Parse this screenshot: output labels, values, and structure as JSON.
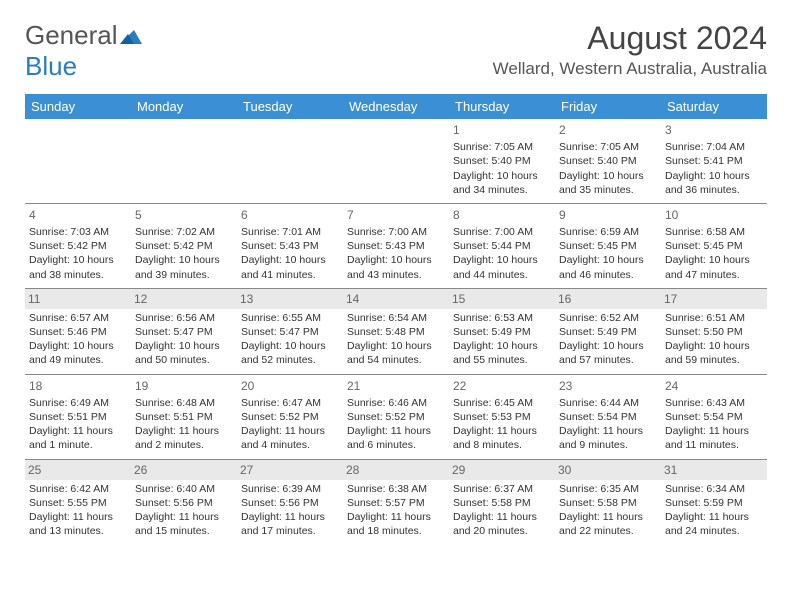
{
  "logo": {
    "text1": "General",
    "text2": "Blue"
  },
  "title": "August 2024",
  "location": "Wellard, Western Australia, Australia",
  "colors": {
    "header_bg": "#3b8fd4",
    "header_text": "#ffffff",
    "logo_blue": "#2a7dc0",
    "shade_bg": "#e9e9e9",
    "border": "#888888"
  },
  "dayHeaders": [
    "Sunday",
    "Monday",
    "Tuesday",
    "Wednesday",
    "Thursday",
    "Friday",
    "Saturday"
  ],
  "weeks": [
    [
      {
        "day": "",
        "sunrise": "",
        "sunset": "",
        "daylight": ""
      },
      {
        "day": "",
        "sunrise": "",
        "sunset": "",
        "daylight": ""
      },
      {
        "day": "",
        "sunrise": "",
        "sunset": "",
        "daylight": ""
      },
      {
        "day": "",
        "sunrise": "",
        "sunset": "",
        "daylight": ""
      },
      {
        "day": "1",
        "sunrise": "Sunrise: 7:05 AM",
        "sunset": "Sunset: 5:40 PM",
        "daylight": "Daylight: 10 hours and 34 minutes."
      },
      {
        "day": "2",
        "sunrise": "Sunrise: 7:05 AM",
        "sunset": "Sunset: 5:40 PM",
        "daylight": "Daylight: 10 hours and 35 minutes."
      },
      {
        "day": "3",
        "sunrise": "Sunrise: 7:04 AM",
        "sunset": "Sunset: 5:41 PM",
        "daylight": "Daylight: 10 hours and 36 minutes."
      }
    ],
    [
      {
        "day": "4",
        "sunrise": "Sunrise: 7:03 AM",
        "sunset": "Sunset: 5:42 PM",
        "daylight": "Daylight: 10 hours and 38 minutes."
      },
      {
        "day": "5",
        "sunrise": "Sunrise: 7:02 AM",
        "sunset": "Sunset: 5:42 PM",
        "daylight": "Daylight: 10 hours and 39 minutes."
      },
      {
        "day": "6",
        "sunrise": "Sunrise: 7:01 AM",
        "sunset": "Sunset: 5:43 PM",
        "daylight": "Daylight: 10 hours and 41 minutes."
      },
      {
        "day": "7",
        "sunrise": "Sunrise: 7:00 AM",
        "sunset": "Sunset: 5:43 PM",
        "daylight": "Daylight: 10 hours and 43 minutes."
      },
      {
        "day": "8",
        "sunrise": "Sunrise: 7:00 AM",
        "sunset": "Sunset: 5:44 PM",
        "daylight": "Daylight: 10 hours and 44 minutes."
      },
      {
        "day": "9",
        "sunrise": "Sunrise: 6:59 AM",
        "sunset": "Sunset: 5:45 PM",
        "daylight": "Daylight: 10 hours and 46 minutes."
      },
      {
        "day": "10",
        "sunrise": "Sunrise: 6:58 AM",
        "sunset": "Sunset: 5:45 PM",
        "daylight": "Daylight: 10 hours and 47 minutes."
      }
    ],
    [
      {
        "day": "11",
        "sunrise": "Sunrise: 6:57 AM",
        "sunset": "Sunset: 5:46 PM",
        "daylight": "Daylight: 10 hours and 49 minutes."
      },
      {
        "day": "12",
        "sunrise": "Sunrise: 6:56 AM",
        "sunset": "Sunset: 5:47 PM",
        "daylight": "Daylight: 10 hours and 50 minutes."
      },
      {
        "day": "13",
        "sunrise": "Sunrise: 6:55 AM",
        "sunset": "Sunset: 5:47 PM",
        "daylight": "Daylight: 10 hours and 52 minutes."
      },
      {
        "day": "14",
        "sunrise": "Sunrise: 6:54 AM",
        "sunset": "Sunset: 5:48 PM",
        "daylight": "Daylight: 10 hours and 54 minutes."
      },
      {
        "day": "15",
        "sunrise": "Sunrise: 6:53 AM",
        "sunset": "Sunset: 5:49 PM",
        "daylight": "Daylight: 10 hours and 55 minutes."
      },
      {
        "day": "16",
        "sunrise": "Sunrise: 6:52 AM",
        "sunset": "Sunset: 5:49 PM",
        "daylight": "Daylight: 10 hours and 57 minutes."
      },
      {
        "day": "17",
        "sunrise": "Sunrise: 6:51 AM",
        "sunset": "Sunset: 5:50 PM",
        "daylight": "Daylight: 10 hours and 59 minutes."
      }
    ],
    [
      {
        "day": "18",
        "sunrise": "Sunrise: 6:49 AM",
        "sunset": "Sunset: 5:51 PM",
        "daylight": "Daylight: 11 hours and 1 minute."
      },
      {
        "day": "19",
        "sunrise": "Sunrise: 6:48 AM",
        "sunset": "Sunset: 5:51 PM",
        "daylight": "Daylight: 11 hours and 2 minutes."
      },
      {
        "day": "20",
        "sunrise": "Sunrise: 6:47 AM",
        "sunset": "Sunset: 5:52 PM",
        "daylight": "Daylight: 11 hours and 4 minutes."
      },
      {
        "day": "21",
        "sunrise": "Sunrise: 6:46 AM",
        "sunset": "Sunset: 5:52 PM",
        "daylight": "Daylight: 11 hours and 6 minutes."
      },
      {
        "day": "22",
        "sunrise": "Sunrise: 6:45 AM",
        "sunset": "Sunset: 5:53 PM",
        "daylight": "Daylight: 11 hours and 8 minutes."
      },
      {
        "day": "23",
        "sunrise": "Sunrise: 6:44 AM",
        "sunset": "Sunset: 5:54 PM",
        "daylight": "Daylight: 11 hours and 9 minutes."
      },
      {
        "day": "24",
        "sunrise": "Sunrise: 6:43 AM",
        "sunset": "Sunset: 5:54 PM",
        "daylight": "Daylight: 11 hours and 11 minutes."
      }
    ],
    [
      {
        "day": "25",
        "sunrise": "Sunrise: 6:42 AM",
        "sunset": "Sunset: 5:55 PM",
        "daylight": "Daylight: 11 hours and 13 minutes."
      },
      {
        "day": "26",
        "sunrise": "Sunrise: 6:40 AM",
        "sunset": "Sunset: 5:56 PM",
        "daylight": "Daylight: 11 hours and 15 minutes."
      },
      {
        "day": "27",
        "sunrise": "Sunrise: 6:39 AM",
        "sunset": "Sunset: 5:56 PM",
        "daylight": "Daylight: 11 hours and 17 minutes."
      },
      {
        "day": "28",
        "sunrise": "Sunrise: 6:38 AM",
        "sunset": "Sunset: 5:57 PM",
        "daylight": "Daylight: 11 hours and 18 minutes."
      },
      {
        "day": "29",
        "sunrise": "Sunrise: 6:37 AM",
        "sunset": "Sunset: 5:58 PM",
        "daylight": "Daylight: 11 hours and 20 minutes."
      },
      {
        "day": "30",
        "sunrise": "Sunrise: 6:35 AM",
        "sunset": "Sunset: 5:58 PM",
        "daylight": "Daylight: 11 hours and 22 minutes."
      },
      {
        "day": "31",
        "sunrise": "Sunrise: 6:34 AM",
        "sunset": "Sunset: 5:59 PM",
        "daylight": "Daylight: 11 hours and 24 minutes."
      }
    ]
  ],
  "shadedRows": [
    2,
    4
  ]
}
